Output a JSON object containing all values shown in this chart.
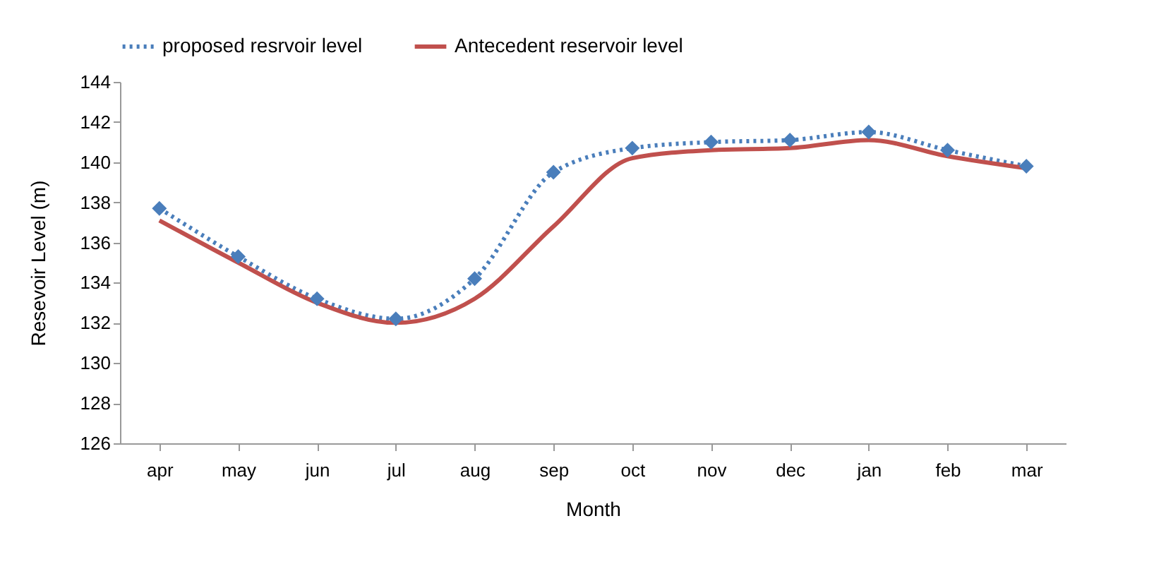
{
  "chart_data": {
    "type": "line",
    "xlabel": "Month",
    "ylabel": "Resevoir Level (m)",
    "categories": [
      "apr",
      "may",
      "jun",
      "jul",
      "aug",
      "sep",
      "oct",
      "nov",
      "dec",
      "jan",
      "feb",
      "mar"
    ],
    "series": [
      {
        "name": "proposed resrvoir level",
        "color": "#4a7ebb",
        "marker": "diamond",
        "line_style": "dotted",
        "values": [
          137.7,
          135.3,
          133.2,
          132.2,
          134.2,
          139.5,
          140.7,
          141.0,
          141.1,
          141.5,
          140.6,
          139.8
        ]
      },
      {
        "name": "Antecedent reservoir level",
        "color": "#c0504d",
        "marker": "none",
        "line_style": "solid",
        "values": [
          137.1,
          135.0,
          133.0,
          132.0,
          133.2,
          136.8,
          140.2,
          140.6,
          140.7,
          141.1,
          140.3,
          139.7
        ]
      }
    ],
    "ylim": [
      126,
      144
    ],
    "yticks": [
      126,
      128,
      130,
      132,
      134,
      136,
      138,
      140,
      142,
      144
    ],
    "legend": "top",
    "grid": false
  }
}
